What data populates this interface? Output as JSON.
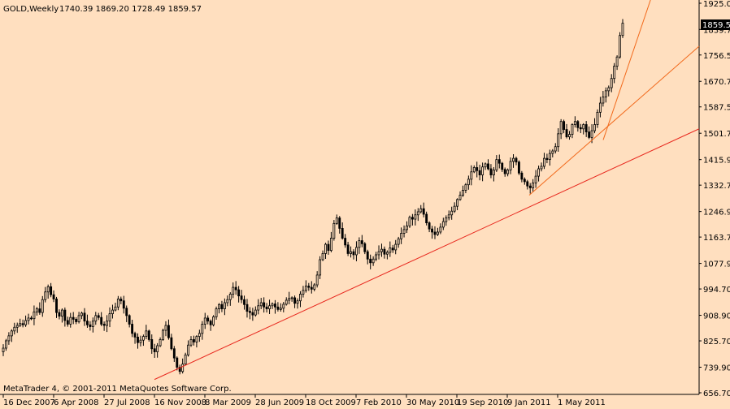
{
  "header": {
    "symbol": "GOLD,Weekly",
    "ohlc": "1740.39 1869.20 1728.49 1859.57"
  },
  "footer": {
    "copyright": "MetaTrader 4, © 2001-2011 MetaQuotes Software Corp."
  },
  "colors": {
    "background": "#ffdfbf",
    "candle": "#000000",
    "price_tag_bg": "#000000",
    "price_tag_fg": "#ffffff",
    "trendline_red": "#e8281e",
    "trendline_orange": "#f26a1c"
  },
  "chart_data": {
    "type": "candlestick",
    "title": "GOLD,Weekly",
    "current_price": "1859.57",
    "ylim": [
      656.7,
      1925.0
    ],
    "y_ticks": [
      "1925.00",
      "1839.70",
      "1756.50",
      "1670.70",
      "1587.50",
      "1501.70",
      "1415.90",
      "1332.70",
      "1246.90",
      "1163.70",
      "1077.90",
      "994.70",
      "908.90",
      "825.70",
      "739.90",
      "656.70"
    ],
    "y_tick_values": [
      1925.0,
      1839.7,
      1756.5,
      1670.7,
      1587.5,
      1501.7,
      1415.9,
      1332.7,
      1246.9,
      1163.7,
      1077.9,
      994.7,
      908.9,
      825.7,
      739.9,
      656.7
    ],
    "x_ticks": [
      "16 Dec 2007",
      "6 Apr 2008",
      "27 Jul 2008",
      "16 Nov 2008",
      "8 Mar 2009",
      "28 Jun 2009",
      "18 Oct 2009",
      "7 Feb 2010",
      "30 May 2010",
      "19 Sep 2010",
      "9 Jan 2011",
      "1 May 2011"
    ],
    "series": [
      {
        "close": [
          802,
          826,
          842,
          858,
          870,
          876,
          882,
          878,
          892,
          900,
          898,
          920,
          930,
          918,
          960,
          985,
          1002,
          976,
          962,
          918,
          906,
          926,
          892,
          880,
          902,
          896,
          888,
          908,
          916,
          890,
          878,
          872,
          890,
          908,
          902,
          880,
          876,
          890,
          914,
          926,
          936,
          962,
          956,
          932,
          908,
          880,
          850,
          838,
          820,
          828,
          840,
          858,
          830,
          800,
          790,
          810,
          830,
          860,
          876,
          836,
          800,
          770,
          740,
          726,
          750,
          780,
          812,
          830,
          822,
          840,
          850,
          880,
          900,
          890,
          878,
          904,
          930,
          944,
          930,
          950,
          960,
          978,
          1000,
          992,
          972,
          960,
          944,
          922,
          918,
          910,
          926,
          940,
          950,
          936,
          930,
          940,
          946,
          936,
          928,
          932,
          945,
          958,
          964,
          966,
          948,
          956,
          978,
          990,
          1004,
          1000,
          994,
          1008,
          1040,
          1090,
          1110,
          1140,
          1120,
          1160,
          1208,
          1226,
          1192,
          1160,
          1138,
          1110,
          1116,
          1106,
          1130,
          1152,
          1142,
          1116,
          1092,
          1080,
          1092,
          1106,
          1116,
          1124,
          1108,
          1114,
          1128,
          1122,
          1140,
          1158,
          1176,
          1188,
          1200,
          1228,
          1222,
          1236,
          1246,
          1256,
          1238,
          1210,
          1190,
          1180,
          1172,
          1180,
          1196,
          1214,
          1226,
          1236,
          1248,
          1264,
          1286,
          1300,
          1316,
          1334,
          1352,
          1376,
          1390,
          1380,
          1366,
          1392,
          1402,
          1386,
          1366,
          1382,
          1416,
          1404,
          1384,
          1370,
          1382,
          1410,
          1420,
          1408,
          1372,
          1352,
          1344,
          1330,
          1324,
          1340,
          1362,
          1386,
          1394,
          1420,
          1416,
          1436,
          1444,
          1458,
          1500,
          1540,
          1514,
          1490,
          1498,
          1530,
          1540,
          1520,
          1516,
          1530,
          1506,
          1488,
          1510,
          1530,
          1570,
          1600,
          1620,
          1640,
          1650,
          1680,
          1720,
          1750,
          1820,
          1860
        ]
      }
    ],
    "trendlines": [
      {
        "from": "2008-10",
        "from_price": 700,
        "slope_per_week": 4.2,
        "color": "red"
      },
      {
        "from": "2010-12",
        "from_price": 1300,
        "slope_per_week": 8.0,
        "color": "orange"
      },
      {
        "from": "2011-06",
        "from_price": 1480,
        "slope_per_week": 27.0,
        "color": "orange"
      }
    ]
  }
}
